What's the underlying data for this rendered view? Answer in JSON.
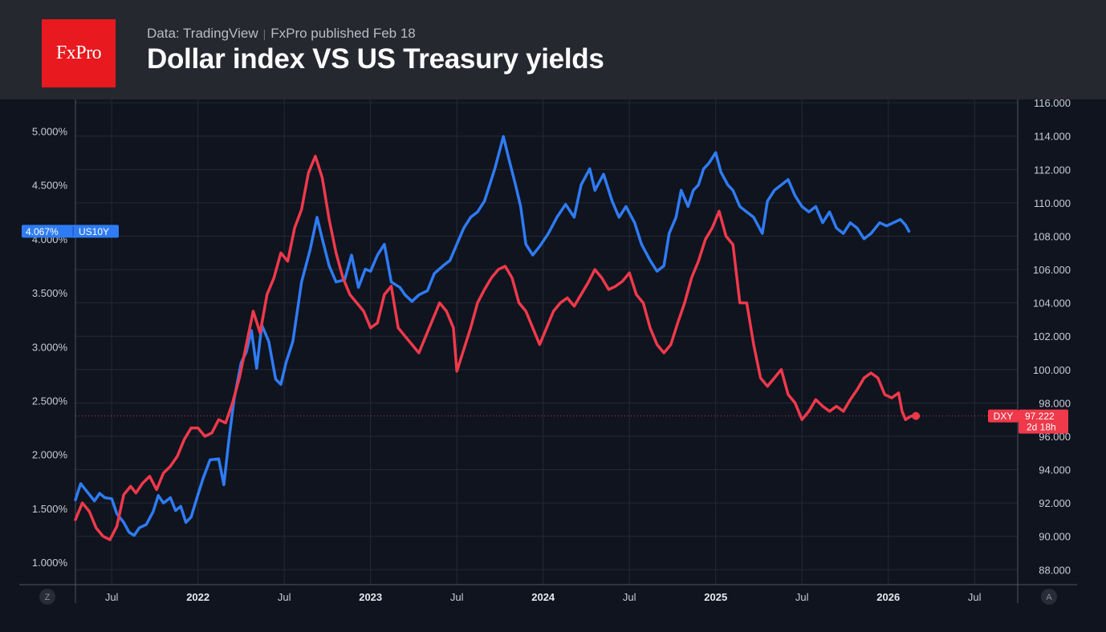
{
  "header": {
    "logo_text": "FxPro",
    "data_source": "Data: TradingView",
    "published": "FxPro published Feb 18",
    "title": "Dollar index VS US Treasury yields"
  },
  "corner_buttons": {
    "left": "Z",
    "right": "A"
  },
  "colors": {
    "us10y": "#2f7bf5",
    "dxy": "#f0394b",
    "grid": "#252a36",
    "axis_text": "#c8ccd4"
  },
  "chart_data": {
    "type": "line",
    "title": "Dollar index VS US Treasury yields",
    "x_range": [
      2021.29,
      2026.75
    ],
    "x_ticks": [
      {
        "t": 2021.5,
        "label": "Jul",
        "bold": false
      },
      {
        "t": 2022.0,
        "label": "2022",
        "bold": true
      },
      {
        "t": 2022.5,
        "label": "Jul",
        "bold": false
      },
      {
        "t": 2023.0,
        "label": "2023",
        "bold": true
      },
      {
        "t": 2023.5,
        "label": "Jul",
        "bold": false
      },
      {
        "t": 2024.0,
        "label": "2024",
        "bold": true
      },
      {
        "t": 2024.5,
        "label": "Jul",
        "bold": false
      },
      {
        "t": 2025.0,
        "label": "2025",
        "bold": true
      },
      {
        "t": 2025.5,
        "label": "Jul",
        "bold": false
      },
      {
        "t": 2026.0,
        "label": "2026",
        "bold": true
      },
      {
        "t": 2026.5,
        "label": "Jul",
        "bold": false
      }
    ],
    "left_axis": {
      "range": [
        0.793,
        5.293
      ],
      "ticks": [
        {
          "v": 1.0,
          "label": "1.000%"
        },
        {
          "v": 1.5,
          "label": "1.500%"
        },
        {
          "v": 2.0,
          "label": "2.000%"
        },
        {
          "v": 2.5,
          "label": "2.500%"
        },
        {
          "v": 3.0,
          "label": "3.000%"
        },
        {
          "v": 3.5,
          "label": "3.500%"
        },
        {
          "v": 4.0,
          "label": "4.000%"
        },
        {
          "v": 4.5,
          "label": "4.500%"
        },
        {
          "v": 5.0,
          "label": "5.000%"
        }
      ]
    },
    "right_axis": {
      "range": [
        87.1,
        116.2
      ],
      "ticks": [
        {
          "v": 88,
          "label": "88.000"
        },
        {
          "v": 90,
          "label": "90.000"
        },
        {
          "v": 92,
          "label": "92.000"
        },
        {
          "v": 94,
          "label": "94.000"
        },
        {
          "v": 96,
          "label": "96.000"
        },
        {
          "v": 98,
          "label": "98.000"
        },
        {
          "v": 100,
          "label": "100.000"
        },
        {
          "v": 102,
          "label": "102.000"
        },
        {
          "v": 104,
          "label": "104.000"
        },
        {
          "v": 106,
          "label": "106.000"
        },
        {
          "v": 108,
          "label": "108.000"
        },
        {
          "v": 110,
          "label": "110.000"
        },
        {
          "v": 112,
          "label": "112.000"
        },
        {
          "v": 114,
          "label": "114.000"
        },
        {
          "v": 116,
          "label": "116.000"
        }
      ]
    },
    "series": [
      {
        "name": "US10Y",
        "axis": "left",
        "color": "#2f7bf5",
        "last_value_label": "4.067%",
        "points": [
          [
            2021.29,
            1.58
          ],
          [
            2021.32,
            1.73
          ],
          [
            2021.36,
            1.65
          ],
          [
            2021.4,
            1.57
          ],
          [
            2021.43,
            1.64
          ],
          [
            2021.46,
            1.6
          ],
          [
            2021.5,
            1.59
          ],
          [
            2021.53,
            1.45
          ],
          [
            2021.57,
            1.37
          ],
          [
            2021.6,
            1.28
          ],
          [
            2021.63,
            1.25
          ],
          [
            2021.66,
            1.32
          ],
          [
            2021.7,
            1.35
          ],
          [
            2021.74,
            1.47
          ],
          [
            2021.77,
            1.62
          ],
          [
            2021.8,
            1.55
          ],
          [
            2021.84,
            1.6
          ],
          [
            2021.87,
            1.48
          ],
          [
            2021.9,
            1.52
          ],
          [
            2021.93,
            1.37
          ],
          [
            2021.96,
            1.42
          ],
          [
            2022.0,
            1.63
          ],
          [
            2022.03,
            1.78
          ],
          [
            2022.07,
            1.95
          ],
          [
            2022.12,
            1.96
          ],
          [
            2022.15,
            1.72
          ],
          [
            2022.18,
            2.15
          ],
          [
            2022.21,
            2.52
          ],
          [
            2022.25,
            2.85
          ],
          [
            2022.28,
            2.95
          ],
          [
            2022.31,
            3.15
          ],
          [
            2022.34,
            2.8
          ],
          [
            2022.37,
            3.2
          ],
          [
            2022.41,
            3.05
          ],
          [
            2022.45,
            2.7
          ],
          [
            2022.48,
            2.65
          ],
          [
            2022.51,
            2.85
          ],
          [
            2022.55,
            3.05
          ],
          [
            2022.6,
            3.6
          ],
          [
            2022.65,
            3.9
          ],
          [
            2022.69,
            4.2
          ],
          [
            2022.72,
            4.0
          ],
          [
            2022.76,
            3.75
          ],
          [
            2022.8,
            3.6
          ],
          [
            2022.85,
            3.62
          ],
          [
            2022.89,
            3.85
          ],
          [
            2022.93,
            3.55
          ],
          [
            2022.97,
            3.72
          ],
          [
            2023.0,
            3.7
          ],
          [
            2023.04,
            3.85
          ],
          [
            2023.08,
            3.95
          ],
          [
            2023.12,
            3.6
          ],
          [
            2023.17,
            3.55
          ],
          [
            2023.2,
            3.48
          ],
          [
            2023.24,
            3.42
          ],
          [
            2023.28,
            3.48
          ],
          [
            2023.33,
            3.52
          ],
          [
            2023.37,
            3.68
          ],
          [
            2023.42,
            3.75
          ],
          [
            2023.46,
            3.8
          ],
          [
            2023.5,
            3.95
          ],
          [
            2023.54,
            4.1
          ],
          [
            2023.58,
            4.2
          ],
          [
            2023.62,
            4.25
          ],
          [
            2023.66,
            4.35
          ],
          [
            2023.72,
            4.65
          ],
          [
            2023.77,
            4.95
          ],
          [
            2023.8,
            4.75
          ],
          [
            2023.84,
            4.5
          ],
          [
            2023.87,
            4.3
          ],
          [
            2023.9,
            3.95
          ],
          [
            2023.94,
            3.85
          ],
          [
            2023.98,
            3.93
          ],
          [
            2024.03,
            4.05
          ],
          [
            2024.08,
            4.2
          ],
          [
            2024.13,
            4.32
          ],
          [
            2024.18,
            4.2
          ],
          [
            2024.22,
            4.5
          ],
          [
            2024.27,
            4.65
          ],
          [
            2024.3,
            4.45
          ],
          [
            2024.35,
            4.6
          ],
          [
            2024.4,
            4.35
          ],
          [
            2024.44,
            4.2
          ],
          [
            2024.48,
            4.3
          ],
          [
            2024.53,
            4.15
          ],
          [
            2024.57,
            3.95
          ],
          [
            2024.62,
            3.8
          ],
          [
            2024.66,
            3.7
          ],
          [
            2024.7,
            3.75
          ],
          [
            2024.73,
            4.05
          ],
          [
            2024.77,
            4.2
          ],
          [
            2024.8,
            4.45
          ],
          [
            2024.84,
            4.3
          ],
          [
            2024.87,
            4.45
          ],
          [
            2024.9,
            4.5
          ],
          [
            2024.93,
            4.65
          ],
          [
            2024.96,
            4.7
          ],
          [
            2025.0,
            4.8
          ],
          [
            2025.03,
            4.62
          ],
          [
            2025.07,
            4.5
          ],
          [
            2025.1,
            4.45
          ],
          [
            2025.14,
            4.3
          ],
          [
            2025.18,
            4.25
          ],
          [
            2025.22,
            4.2
          ],
          [
            2025.27,
            4.05
          ],
          [
            2025.3,
            4.35
          ],
          [
            2025.34,
            4.45
          ],
          [
            2025.38,
            4.5
          ],
          [
            2025.42,
            4.55
          ],
          [
            2025.46,
            4.4
          ],
          [
            2025.5,
            4.3
          ],
          [
            2025.54,
            4.25
          ],
          [
            2025.58,
            4.3
          ],
          [
            2025.62,
            4.15
          ],
          [
            2025.66,
            4.25
          ],
          [
            2025.7,
            4.1
          ],
          [
            2025.74,
            4.05
          ],
          [
            2025.78,
            4.15
          ],
          [
            2025.82,
            4.1
          ],
          [
            2025.86,
            4.0
          ],
          [
            2025.9,
            4.05
          ],
          [
            2025.95,
            4.15
          ],
          [
            2025.99,
            4.12
          ],
          [
            2026.03,
            4.15
          ],
          [
            2026.07,
            4.18
          ],
          [
            2026.1,
            4.13
          ],
          [
            2026.12,
            4.07
          ]
        ]
      },
      {
        "name": "DXY",
        "axis": "right",
        "color": "#f0394b",
        "last_value_label": "97.222",
        "countdown": "2d 18h",
        "points": [
          [
            2021.29,
            91.0
          ],
          [
            2021.33,
            92.0
          ],
          [
            2021.37,
            91.5
          ],
          [
            2021.41,
            90.5
          ],
          [
            2021.45,
            90.0
          ],
          [
            2021.49,
            89.8
          ],
          [
            2021.53,
            90.6
          ],
          [
            2021.57,
            92.5
          ],
          [
            2021.61,
            93.0
          ],
          [
            2021.64,
            92.6
          ],
          [
            2021.68,
            93.2
          ],
          [
            2021.72,
            93.6
          ],
          [
            2021.76,
            92.8
          ],
          [
            2021.8,
            93.8
          ],
          [
            2021.84,
            94.2
          ],
          [
            2021.88,
            94.8
          ],
          [
            2021.92,
            95.8
          ],
          [
            2021.96,
            96.5
          ],
          [
            2022.0,
            96.5
          ],
          [
            2022.04,
            96.0
          ],
          [
            2022.08,
            96.2
          ],
          [
            2022.12,
            97.0
          ],
          [
            2022.16,
            96.8
          ],
          [
            2022.2,
            98.0
          ],
          [
            2022.24,
            99.5
          ],
          [
            2022.28,
            101.5
          ],
          [
            2022.32,
            103.5
          ],
          [
            2022.36,
            102.2
          ],
          [
            2022.4,
            104.5
          ],
          [
            2022.44,
            105.5
          ],
          [
            2022.48,
            107.0
          ],
          [
            2022.52,
            106.5
          ],
          [
            2022.56,
            108.5
          ],
          [
            2022.6,
            109.6
          ],
          [
            2022.64,
            111.8
          ],
          [
            2022.68,
            112.8
          ],
          [
            2022.72,
            111.5
          ],
          [
            2022.76,
            109.0
          ],
          [
            2022.8,
            107.0
          ],
          [
            2022.84,
            105.5
          ],
          [
            2022.88,
            104.5
          ],
          [
            2022.92,
            104.0
          ],
          [
            2022.96,
            103.5
          ],
          [
            2023.0,
            102.5
          ],
          [
            2023.04,
            102.8
          ],
          [
            2023.08,
            104.5
          ],
          [
            2023.12,
            105.0
          ],
          [
            2023.16,
            102.5
          ],
          [
            2023.2,
            102.0
          ],
          [
            2023.24,
            101.5
          ],
          [
            2023.28,
            101.0
          ],
          [
            2023.32,
            102.0
          ],
          [
            2023.36,
            103.0
          ],
          [
            2023.4,
            104.0
          ],
          [
            2023.44,
            103.5
          ],
          [
            2023.48,
            102.5
          ],
          [
            2023.5,
            99.9
          ],
          [
            2023.54,
            101.2
          ],
          [
            2023.58,
            102.5
          ],
          [
            2023.62,
            104.0
          ],
          [
            2023.66,
            104.8
          ],
          [
            2023.7,
            105.5
          ],
          [
            2023.74,
            106.0
          ],
          [
            2023.78,
            106.2
          ],
          [
            2023.82,
            105.5
          ],
          [
            2023.86,
            104.0
          ],
          [
            2023.9,
            103.5
          ],
          [
            2023.94,
            102.5
          ],
          [
            2023.98,
            101.5
          ],
          [
            2024.02,
            102.5
          ],
          [
            2024.06,
            103.5
          ],
          [
            2024.1,
            104.0
          ],
          [
            2024.14,
            104.3
          ],
          [
            2024.18,
            103.8
          ],
          [
            2024.22,
            104.5
          ],
          [
            2024.26,
            105.2
          ],
          [
            2024.3,
            106.0
          ],
          [
            2024.34,
            105.5
          ],
          [
            2024.38,
            104.8
          ],
          [
            2024.42,
            105.0
          ],
          [
            2024.46,
            105.3
          ],
          [
            2024.5,
            105.8
          ],
          [
            2024.54,
            104.5
          ],
          [
            2024.58,
            104.0
          ],
          [
            2024.62,
            102.5
          ],
          [
            2024.66,
            101.5
          ],
          [
            2024.7,
            101.0
          ],
          [
            2024.74,
            101.5
          ],
          [
            2024.78,
            102.8
          ],
          [
            2024.82,
            104.0
          ],
          [
            2024.86,
            105.5
          ],
          [
            2024.9,
            106.5
          ],
          [
            2024.94,
            107.8
          ],
          [
            2024.98,
            108.5
          ],
          [
            2025.02,
            109.5
          ],
          [
            2025.06,
            108.0
          ],
          [
            2025.1,
            107.5
          ],
          [
            2025.14,
            104.0
          ],
          [
            2025.18,
            104.0
          ],
          [
            2025.22,
            101.5
          ],
          [
            2025.26,
            99.5
          ],
          [
            2025.3,
            99.0
          ],
          [
            2025.34,
            99.5
          ],
          [
            2025.38,
            100.0
          ],
          [
            2025.42,
            98.5
          ],
          [
            2025.46,
            98.0
          ],
          [
            2025.5,
            97.0
          ],
          [
            2025.54,
            97.5
          ],
          [
            2025.58,
            98.2
          ],
          [
            2025.62,
            97.8
          ],
          [
            2025.66,
            97.5
          ],
          [
            2025.7,
            97.8
          ],
          [
            2025.74,
            97.5
          ],
          [
            2025.78,
            98.2
          ],
          [
            2025.82,
            98.8
          ],
          [
            2025.86,
            99.5
          ],
          [
            2025.9,
            99.8
          ],
          [
            2025.94,
            99.5
          ],
          [
            2025.98,
            98.5
          ],
          [
            2026.02,
            98.3
          ],
          [
            2026.06,
            98.6
          ],
          [
            2026.08,
            97.5
          ],
          [
            2026.1,
            97.0
          ],
          [
            2026.13,
            97.2
          ],
          [
            2026.16,
            97.22
          ]
        ]
      }
    ]
  }
}
